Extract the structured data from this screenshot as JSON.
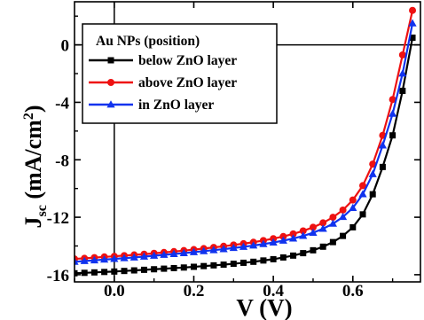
{
  "chart_data": {
    "type": "line",
    "xlabel": "V (V)",
    "ylabel_main": "J",
    "ylabel_sub": "sc",
    "ylabel_unit": " (mA/cm",
    "ylabel_sup": "2",
    "ylabel_close": ")",
    "xlim": [
      -0.1,
      0.77
    ],
    "ylim": [
      -16.5,
      3.0
    ],
    "xticks": [
      0.0,
      0.2,
      0.4,
      0.6
    ],
    "xtick_labels": [
      "0.0",
      "0.2",
      "0.4",
      "0.6"
    ],
    "yticks": [
      0,
      -4,
      -8,
      -12,
      -16
    ],
    "ytick_labels": [
      "0",
      "-4",
      "-8",
      "-12",
      "-16"
    ],
    "grid": false,
    "legend": {
      "title": "Au NPs (position)",
      "placement": "top-left"
    },
    "series": [
      {
        "name": "below ZnO layer",
        "color": "#000000",
        "marker": "square",
        "x": [
          -0.1,
          -0.075,
          -0.05,
          -0.025,
          0.0,
          0.025,
          0.05,
          0.075,
          0.1,
          0.125,
          0.15,
          0.175,
          0.2,
          0.225,
          0.25,
          0.275,
          0.3,
          0.325,
          0.35,
          0.375,
          0.4,
          0.425,
          0.45,
          0.475,
          0.5,
          0.525,
          0.55,
          0.575,
          0.6,
          0.625,
          0.65,
          0.675,
          0.7,
          0.725,
          0.75
        ],
        "y": [
          -15.9,
          -15.87,
          -15.84,
          -15.81,
          -15.78,
          -15.74,
          -15.7,
          -15.66,
          -15.62,
          -15.58,
          -15.54,
          -15.5,
          -15.45,
          -15.4,
          -15.35,
          -15.3,
          -15.24,
          -15.17,
          -15.1,
          -15.01,
          -14.92,
          -14.8,
          -14.67,
          -14.5,
          -14.3,
          -14.05,
          -13.73,
          -13.3,
          -12.7,
          -11.8,
          -10.4,
          -8.5,
          -6.3,
          -3.2,
          0.5
        ]
      },
      {
        "name": "above ZnO layer",
        "color": "#ee1111",
        "marker": "circle",
        "x": [
          -0.1,
          -0.075,
          -0.05,
          -0.025,
          0.0,
          0.025,
          0.05,
          0.075,
          0.1,
          0.125,
          0.15,
          0.175,
          0.2,
          0.225,
          0.25,
          0.275,
          0.3,
          0.325,
          0.35,
          0.375,
          0.4,
          0.425,
          0.45,
          0.475,
          0.5,
          0.525,
          0.55,
          0.575,
          0.6,
          0.625,
          0.65,
          0.675,
          0.7,
          0.725,
          0.75
        ],
        "y": [
          -14.9,
          -14.86,
          -14.81,
          -14.76,
          -14.72,
          -14.67,
          -14.62,
          -14.57,
          -14.51,
          -14.45,
          -14.39,
          -14.32,
          -14.25,
          -14.18,
          -14.1,
          -14.02,
          -13.93,
          -13.84,
          -13.74,
          -13.62,
          -13.49,
          -13.34,
          -13.16,
          -12.95,
          -12.7,
          -12.39,
          -12.0,
          -11.5,
          -10.8,
          -9.8,
          -8.3,
          -6.3,
          -3.8,
          -0.7,
          2.4
        ]
      },
      {
        "name": "in ZnO layer",
        "color": "#1133ee",
        "marker": "triangle",
        "x": [
          -0.1,
          -0.075,
          -0.05,
          -0.025,
          0.0,
          0.025,
          0.05,
          0.075,
          0.1,
          0.125,
          0.15,
          0.175,
          0.2,
          0.225,
          0.25,
          0.275,
          0.3,
          0.325,
          0.35,
          0.375,
          0.4,
          0.425,
          0.45,
          0.475,
          0.5,
          0.525,
          0.55,
          0.575,
          0.6,
          0.625,
          0.65,
          0.675,
          0.7,
          0.725,
          0.75
        ],
        "y": [
          -15.1,
          -15.05,
          -15.0,
          -14.95,
          -14.9,
          -14.85,
          -14.8,
          -14.74,
          -14.68,
          -14.62,
          -14.56,
          -14.5,
          -14.43,
          -14.36,
          -14.29,
          -14.22,
          -14.14,
          -14.06,
          -13.97,
          -13.87,
          -13.76,
          -13.63,
          -13.48,
          -13.3,
          -13.08,
          -12.8,
          -12.45,
          -11.98,
          -11.35,
          -10.4,
          -9.0,
          -7.0,
          -4.8,
          -2.0,
          1.5
        ]
      }
    ]
  }
}
